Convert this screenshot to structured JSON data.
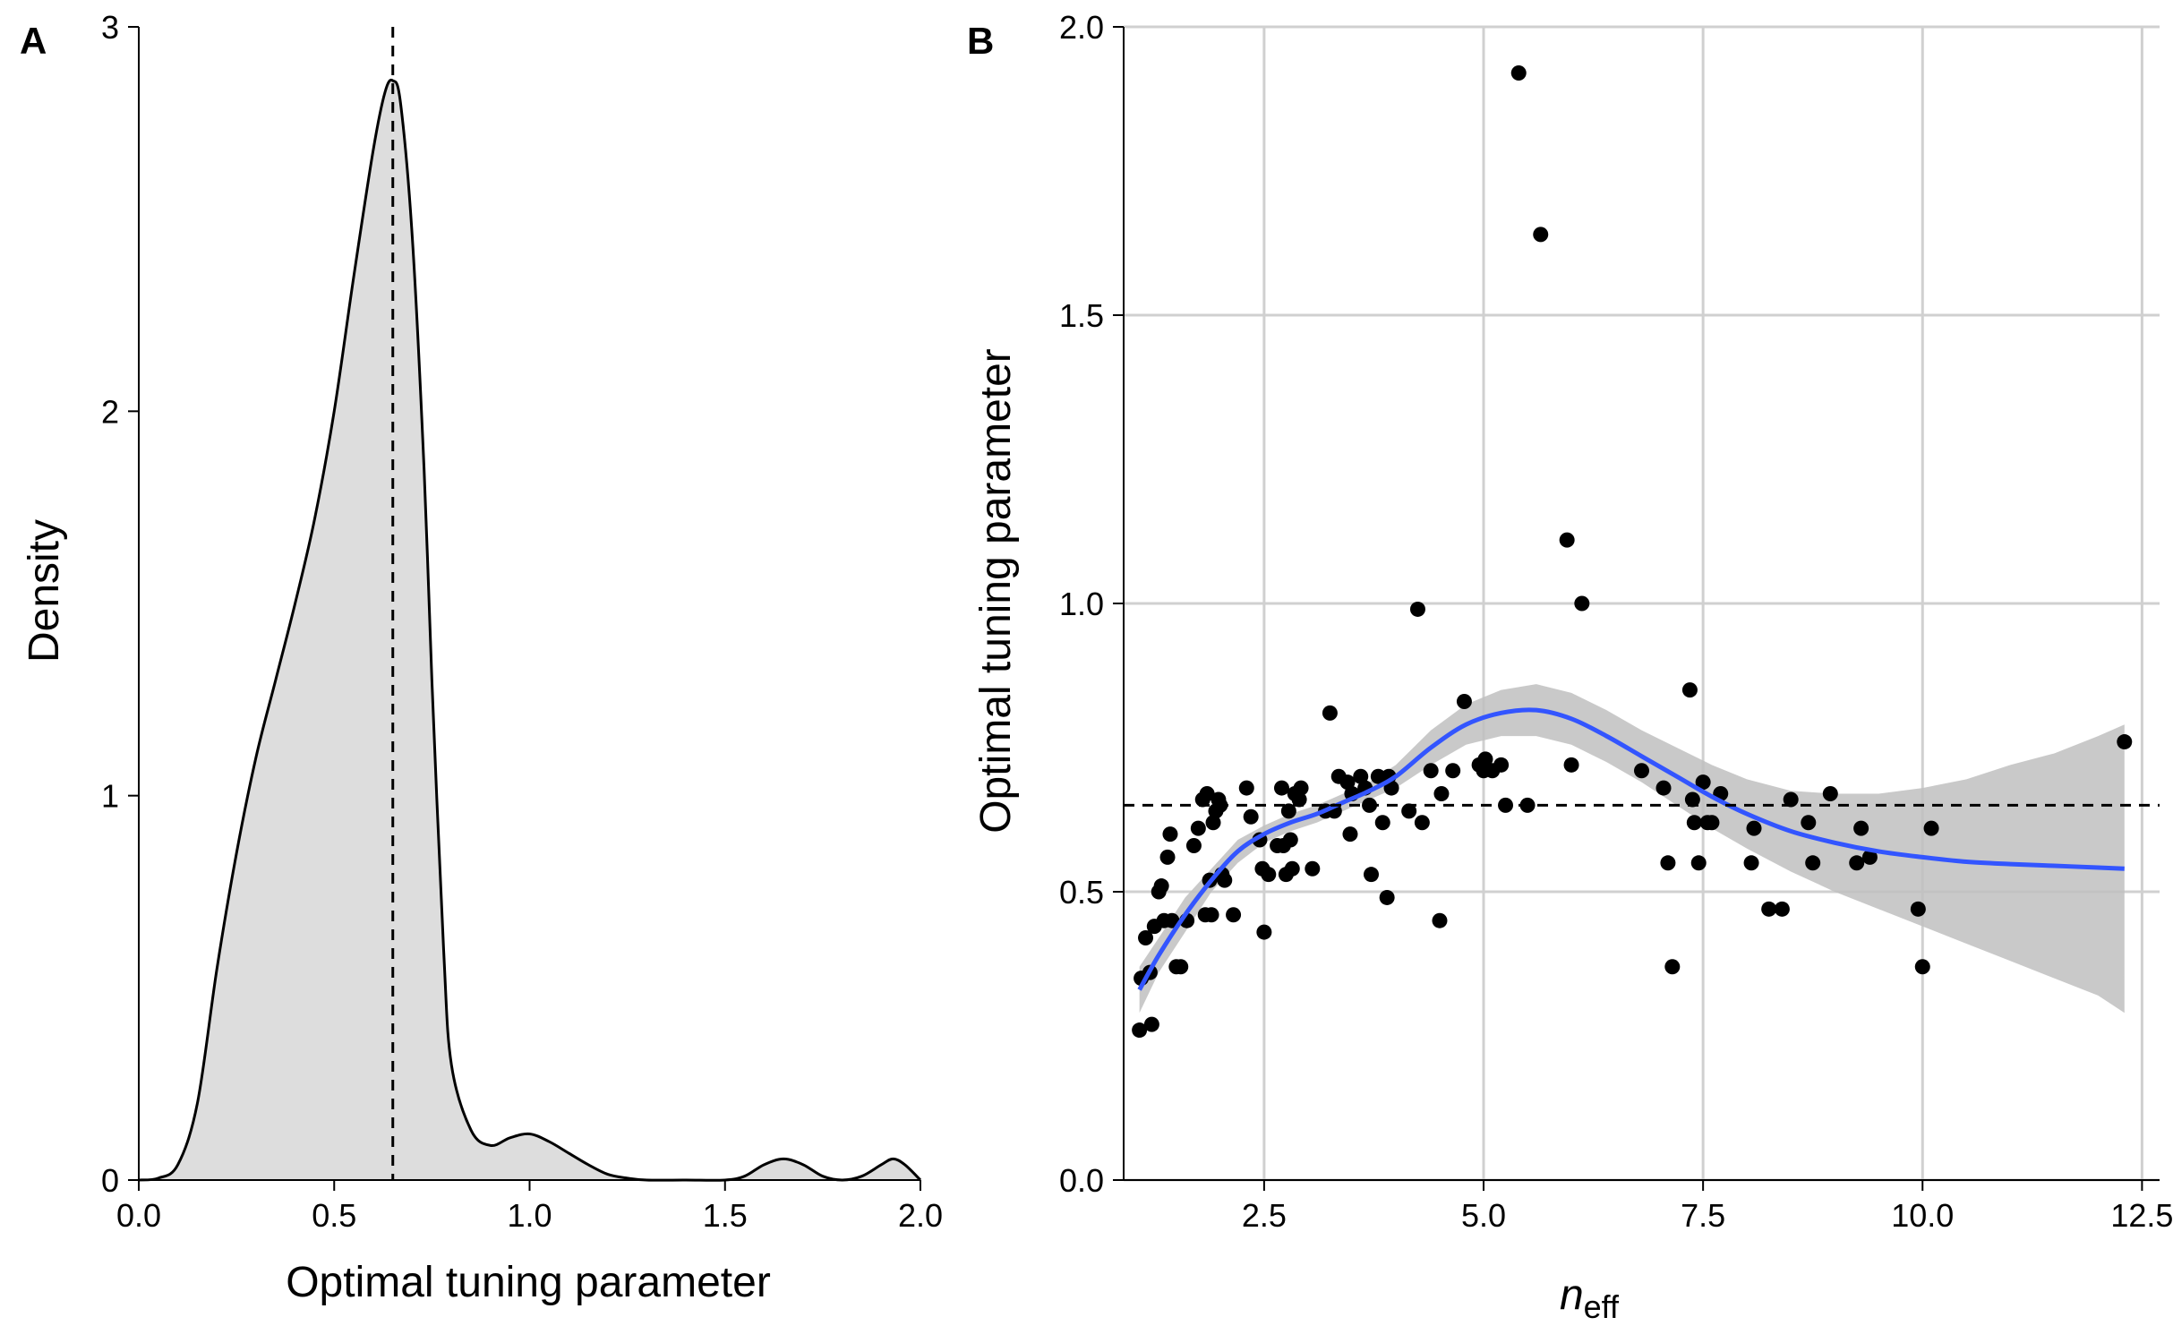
{
  "chart_data": [
    {
      "panel": "A",
      "type": "area",
      "xlabel": "Optimal tuning parameter",
      "ylabel": "Density",
      "xlim": [
        0,
        2
      ],
      "ylim": [
        0,
        3
      ],
      "xticks": [
        0,
        0.5,
        1,
        1.5,
        2
      ],
      "xtick_labels": [
        "0.0",
        "0.5",
        "1.0",
        "1.5",
        "2.0"
      ],
      "yticks": [
        0,
        1,
        2,
        3
      ],
      "ytick_labels": [
        "0",
        "1",
        "2",
        "3"
      ],
      "grid": false,
      "fill_color": "#dddddd",
      "line_color": "#000000",
      "reference_line": {
        "axis": "x",
        "value": 0.65,
        "style": "dashed"
      },
      "x": [
        0.0,
        0.05,
        0.1,
        0.15,
        0.2,
        0.25,
        0.3,
        0.35,
        0.4,
        0.45,
        0.5,
        0.55,
        0.6,
        0.63,
        0.65,
        0.67,
        0.7,
        0.73,
        0.75,
        0.78,
        0.8,
        0.85,
        0.9,
        0.95,
        1.0,
        1.05,
        1.1,
        1.15,
        1.2,
        1.25,
        1.3,
        1.4,
        1.5,
        1.55,
        1.6,
        1.65,
        1.7,
        1.75,
        1.8,
        1.85,
        1.9,
        1.93,
        1.96,
        2.0
      ],
      "values": [
        0.0,
        0.005,
        0.04,
        0.2,
        0.55,
        0.85,
        1.1,
        1.3,
        1.5,
        1.72,
        2.0,
        2.35,
        2.68,
        2.83,
        2.86,
        2.8,
        2.45,
        1.85,
        1.3,
        0.6,
        0.3,
        0.13,
        0.09,
        0.11,
        0.12,
        0.1,
        0.07,
        0.04,
        0.015,
        0.005,
        0.0,
        0.0,
        0.0,
        0.01,
        0.04,
        0.055,
        0.04,
        0.01,
        0.0,
        0.01,
        0.04,
        0.055,
        0.04,
        0.0
      ]
    },
    {
      "panel": "B",
      "type": "scatter",
      "xlabel": "n",
      "xlabel_subscript": "eff",
      "ylabel": "Optimal tuning parameter",
      "xlim": [
        0.9,
        12.7
      ],
      "ylim": [
        0,
        2
      ],
      "xticks": [
        2.5,
        5,
        7.5,
        10,
        12.5
      ],
      "xtick_labels": [
        "2.5",
        "5.0",
        "7.5",
        "10.0",
        "12.5"
      ],
      "yticks": [
        0,
        0.5,
        1,
        1.5,
        2
      ],
      "ytick_labels": [
        "0.0",
        "0.5",
        "1.0",
        "1.5",
        "2.0"
      ],
      "grid": true,
      "point_color": "#000000",
      "smooth_color": "#3355ff",
      "band_color": "#bfbfbf",
      "reference_line": {
        "axis": "y",
        "value": 0.65,
        "style": "dashed"
      },
      "points": [
        [
          1.08,
          0.26
        ],
        [
          1.1,
          0.35
        ],
        [
          1.15,
          0.42
        ],
        [
          1.2,
          0.36
        ],
        [
          1.22,
          0.27
        ],
        [
          1.25,
          0.44
        ],
        [
          1.3,
          0.5
        ],
        [
          1.33,
          0.51
        ],
        [
          1.36,
          0.45
        ],
        [
          1.4,
          0.56
        ],
        [
          1.43,
          0.6
        ],
        [
          1.45,
          0.45
        ],
        [
          1.5,
          0.37
        ],
        [
          1.55,
          0.37
        ],
        [
          1.62,
          0.45
        ],
        [
          1.7,
          0.58
        ],
        [
          1.75,
          0.61
        ],
        [
          1.8,
          0.66
        ],
        [
          1.83,
          0.46
        ],
        [
          1.85,
          0.67
        ],
        [
          1.88,
          0.52
        ],
        [
          1.9,
          0.46
        ],
        [
          1.92,
          0.62
        ],
        [
          1.95,
          0.64
        ],
        [
          1.98,
          0.66
        ],
        [
          2.0,
          0.65
        ],
        [
          2.02,
          0.53
        ],
        [
          2.05,
          0.52
        ],
        [
          2.15,
          0.46
        ],
        [
          2.3,
          0.68
        ],
        [
          2.35,
          0.63
        ],
        [
          2.45,
          0.59
        ],
        [
          2.48,
          0.54
        ],
        [
          2.5,
          0.43
        ],
        [
          2.55,
          0.53
        ],
        [
          2.65,
          0.58
        ],
        [
          2.7,
          0.68
        ],
        [
          2.72,
          0.58
        ],
        [
          2.75,
          0.53
        ],
        [
          2.78,
          0.64
        ],
        [
          2.8,
          0.59
        ],
        [
          2.82,
          0.54
        ],
        [
          2.85,
          0.67
        ],
        [
          2.9,
          0.66
        ],
        [
          2.92,
          0.68
        ],
        [
          3.05,
          0.54
        ],
        [
          3.2,
          0.64
        ],
        [
          3.25,
          0.81
        ],
        [
          3.3,
          0.64
        ],
        [
          3.35,
          0.7
        ],
        [
          3.45,
          0.69
        ],
        [
          3.48,
          0.6
        ],
        [
          3.5,
          0.67
        ],
        [
          3.6,
          0.7
        ],
        [
          3.65,
          0.68
        ],
        [
          3.7,
          0.65
        ],
        [
          3.72,
          0.53
        ],
        [
          3.8,
          0.7
        ],
        [
          3.85,
          0.62
        ],
        [
          3.9,
          0.49
        ],
        [
          3.92,
          0.7
        ],
        [
          3.95,
          0.68
        ],
        [
          4.15,
          0.64
        ],
        [
          4.25,
          0.99
        ],
        [
          4.3,
          0.62
        ],
        [
          4.4,
          0.71
        ],
        [
          4.5,
          0.45
        ],
        [
          4.52,
          0.67
        ],
        [
          4.65,
          0.71
        ],
        [
          4.78,
          0.83
        ],
        [
          4.95,
          0.72
        ],
        [
          5.0,
          0.71
        ],
        [
          5.02,
          0.73
        ],
        [
          5.1,
          0.71
        ],
        [
          5.2,
          0.72
        ],
        [
          5.25,
          0.65
        ],
        [
          5.4,
          1.92
        ],
        [
          5.5,
          0.65
        ],
        [
          5.65,
          1.64
        ],
        [
          5.95,
          1.11
        ],
        [
          6.0,
          0.72
        ],
        [
          6.12,
          1.0
        ],
        [
          6.8,
          0.71
        ],
        [
          7.05,
          0.68
        ],
        [
          7.1,
          0.55
        ],
        [
          7.15,
          0.37
        ],
        [
          7.35,
          0.85
        ],
        [
          7.38,
          0.66
        ],
        [
          7.4,
          0.62
        ],
        [
          7.45,
          0.55
        ],
        [
          7.5,
          0.69
        ],
        [
          7.55,
          0.62
        ],
        [
          7.6,
          0.62
        ],
        [
          7.7,
          0.67
        ],
        [
          8.05,
          0.55
        ],
        [
          8.08,
          0.61
        ],
        [
          8.25,
          0.47
        ],
        [
          8.4,
          0.47
        ],
        [
          8.5,
          0.66
        ],
        [
          8.7,
          0.62
        ],
        [
          8.75,
          0.55
        ],
        [
          8.95,
          0.67
        ],
        [
          9.25,
          0.55
        ],
        [
          9.3,
          0.61
        ],
        [
          9.4,
          0.56
        ],
        [
          9.95,
          0.47
        ],
        [
          10.0,
          0.37
        ],
        [
          10.1,
          0.61
        ],
        [
          12.3,
          0.76
        ]
      ],
      "smooth": {
        "x": [
          1.08,
          1.3,
          1.6,
          1.9,
          2.2,
          2.5,
          2.8,
          3.1,
          3.4,
          3.7,
          4.0,
          4.4,
          4.8,
          5.2,
          5.6,
          6.0,
          6.4,
          6.8,
          7.2,
          7.6,
          8.0,
          8.5,
          9.0,
          9.5,
          10.0,
          10.5,
          11.0,
          11.5,
          12.0,
          12.3
        ],
        "y": [
          0.33,
          0.39,
          0.46,
          0.52,
          0.57,
          0.6,
          0.62,
          0.635,
          0.655,
          0.675,
          0.7,
          0.75,
          0.79,
          0.81,
          0.815,
          0.8,
          0.77,
          0.735,
          0.7,
          0.665,
          0.635,
          0.605,
          0.585,
          0.57,
          0.56,
          0.552,
          0.548,
          0.545,
          0.542,
          0.54
        ],
        "lower": [
          0.29,
          0.36,
          0.43,
          0.5,
          0.55,
          0.585,
          0.605,
          0.62,
          0.64,
          0.66,
          0.68,
          0.72,
          0.755,
          0.77,
          0.77,
          0.755,
          0.725,
          0.69,
          0.65,
          0.61,
          0.575,
          0.535,
          0.5,
          0.47,
          0.44,
          0.41,
          0.38,
          0.35,
          0.32,
          0.29
        ],
        "upper": [
          0.37,
          0.42,
          0.49,
          0.54,
          0.59,
          0.615,
          0.635,
          0.65,
          0.67,
          0.69,
          0.72,
          0.78,
          0.825,
          0.85,
          0.86,
          0.845,
          0.815,
          0.78,
          0.75,
          0.72,
          0.695,
          0.675,
          0.67,
          0.67,
          0.68,
          0.695,
          0.72,
          0.74,
          0.77,
          0.79
        ]
      }
    }
  ]
}
